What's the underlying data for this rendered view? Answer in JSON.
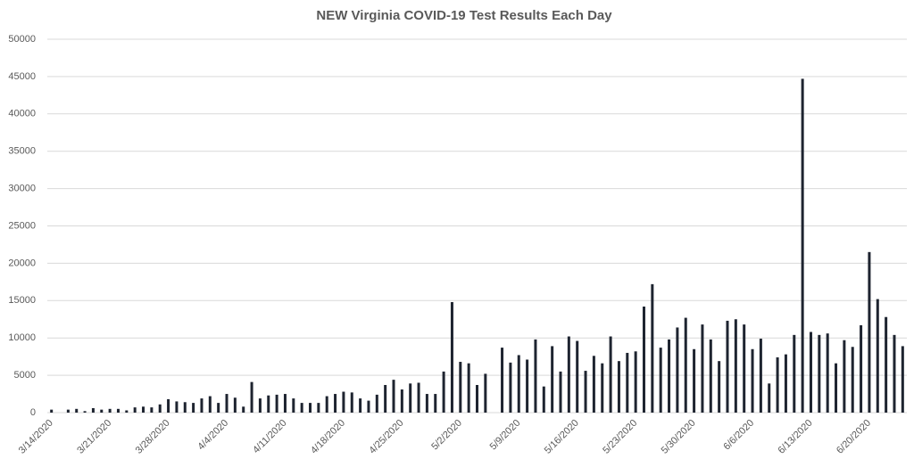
{
  "chart_data": {
    "type": "bar",
    "title": "NEW Virginia COVID-19 Test Results Each Day",
    "categories": [
      "3/14/2020",
      null,
      null,
      null,
      null,
      null,
      null,
      "3/21/2020",
      null,
      null,
      null,
      null,
      null,
      null,
      "3/28/2020",
      null,
      null,
      null,
      null,
      null,
      null,
      "4/4/2020",
      null,
      null,
      null,
      null,
      null,
      null,
      "4/11/2020",
      null,
      null,
      null,
      null,
      null,
      null,
      "4/18/2020",
      null,
      null,
      null,
      null,
      null,
      null,
      "4/25/2020",
      null,
      null,
      null,
      null,
      null,
      null,
      "5/2/2020",
      null,
      null,
      null,
      null,
      null,
      null,
      "5/9/2020",
      null,
      null,
      null,
      null,
      null,
      null,
      "5/16/2020",
      null,
      null,
      null,
      null,
      null,
      null,
      "5/23/2020",
      null,
      null,
      null,
      null,
      null,
      null,
      "5/30/2020",
      null,
      null,
      null,
      null,
      null,
      null,
      "6/6/2020",
      null,
      null,
      null,
      null,
      null,
      null,
      "6/13/2020",
      null,
      null,
      null,
      null,
      null,
      null,
      "6/20/2020",
      null,
      null,
      null,
      null
    ],
    "values": [
      400,
      0,
      400,
      500,
      200,
      600,
      400,
      500,
      500,
      300,
      700,
      800,
      700,
      1100,
      1800,
      1500,
      1400,
      1300,
      1900,
      2200,
      1300,
      2500,
      2000,
      800,
      4100,
      1900,
      2300,
      2400,
      2500,
      1900,
      1300,
      1300,
      1300,
      2200,
      2500,
      2800,
      2700,
      1900,
      1600,
      2400,
      3700,
      4400,
      3100,
      3900,
      4000,
      2500,
      2500,
      5500,
      14800,
      6800,
      6600,
      3700,
      5200,
      0,
      8700,
      6700,
      7700,
      7100,
      9800,
      3500,
      8900,
      5500,
      10200,
      9600,
      5600,
      7600,
      6600,
      10200,
      6900,
      8000,
      8200,
      14200,
      17200,
      8700,
      9800,
      11400,
      12700,
      8500,
      11800,
      9800,
      6900,
      12300,
      12500,
      11800,
      8500,
      9900,
      3900,
      7400,
      7800,
      10400,
      44700,
      10800,
      10400,
      10600,
      6600,
      9700,
      8800,
      11700,
      21500,
      15200,
      12800,
      10400,
      8900
    ],
    "color": "#1e2430",
    "ylim": [
      0,
      50000
    ],
    "yticks": [
      0,
      5000,
      10000,
      15000,
      20000,
      25000,
      30000,
      35000,
      40000,
      45000,
      50000
    ],
    "grid": true
  }
}
